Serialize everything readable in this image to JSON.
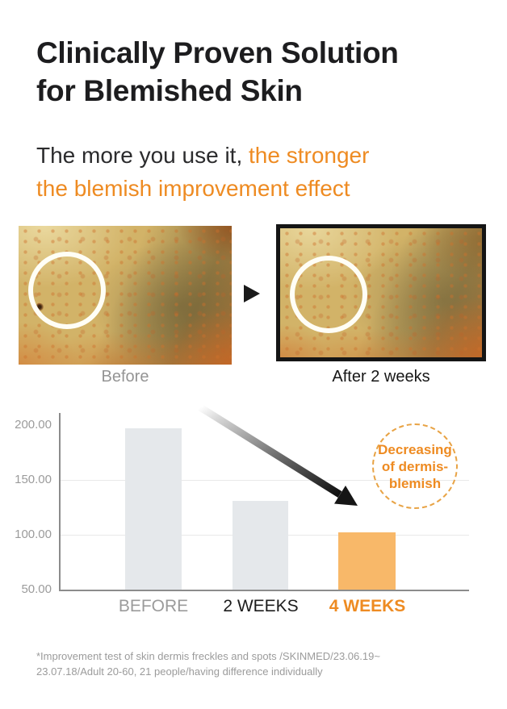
{
  "colors": {
    "accent": "#EE8B22",
    "bar_gray": "#E5E8EB",
    "bar_orange": "#F8B869"
  },
  "header": {
    "title_line1": "Clinically Proven Solution",
    "title_line2": "for Blemished Skin",
    "subtitle_prefix": "The more you use it, ",
    "subtitle_accent_line1": "the stronger",
    "subtitle_accent_line2": "the blemish improvement effect"
  },
  "comparison": {
    "before_label": "Before",
    "after_label": "After 2 weeks"
  },
  "chart_data": {
    "type": "bar",
    "title": "",
    "xlabel": "",
    "ylabel": "",
    "categories": [
      "BEFORE",
      "2 WEEKS",
      "4 WEEKS"
    ],
    "values": [
      197,
      131,
      102
    ],
    "ylim": [
      50,
      200
    ],
    "yticks": [
      "200.00",
      "150.00",
      "100.00",
      "50.00"
    ],
    "bar_colors": [
      "#E5E8EB",
      "#E5E8EB",
      "#F8B869"
    ],
    "grid": true,
    "legend": "none",
    "annotation": "Decreasing of dermis-blemish",
    "annotation_lines": [
      "Decreasing",
      "of dermis-",
      "blemish"
    ]
  },
  "footnote": {
    "line1": "*Improvement test of skin dermis freckles and spots /SKINMED/23.06.19~",
    "line2": "23.07.18/Adult 20-60, 21 people/having difference individually"
  }
}
